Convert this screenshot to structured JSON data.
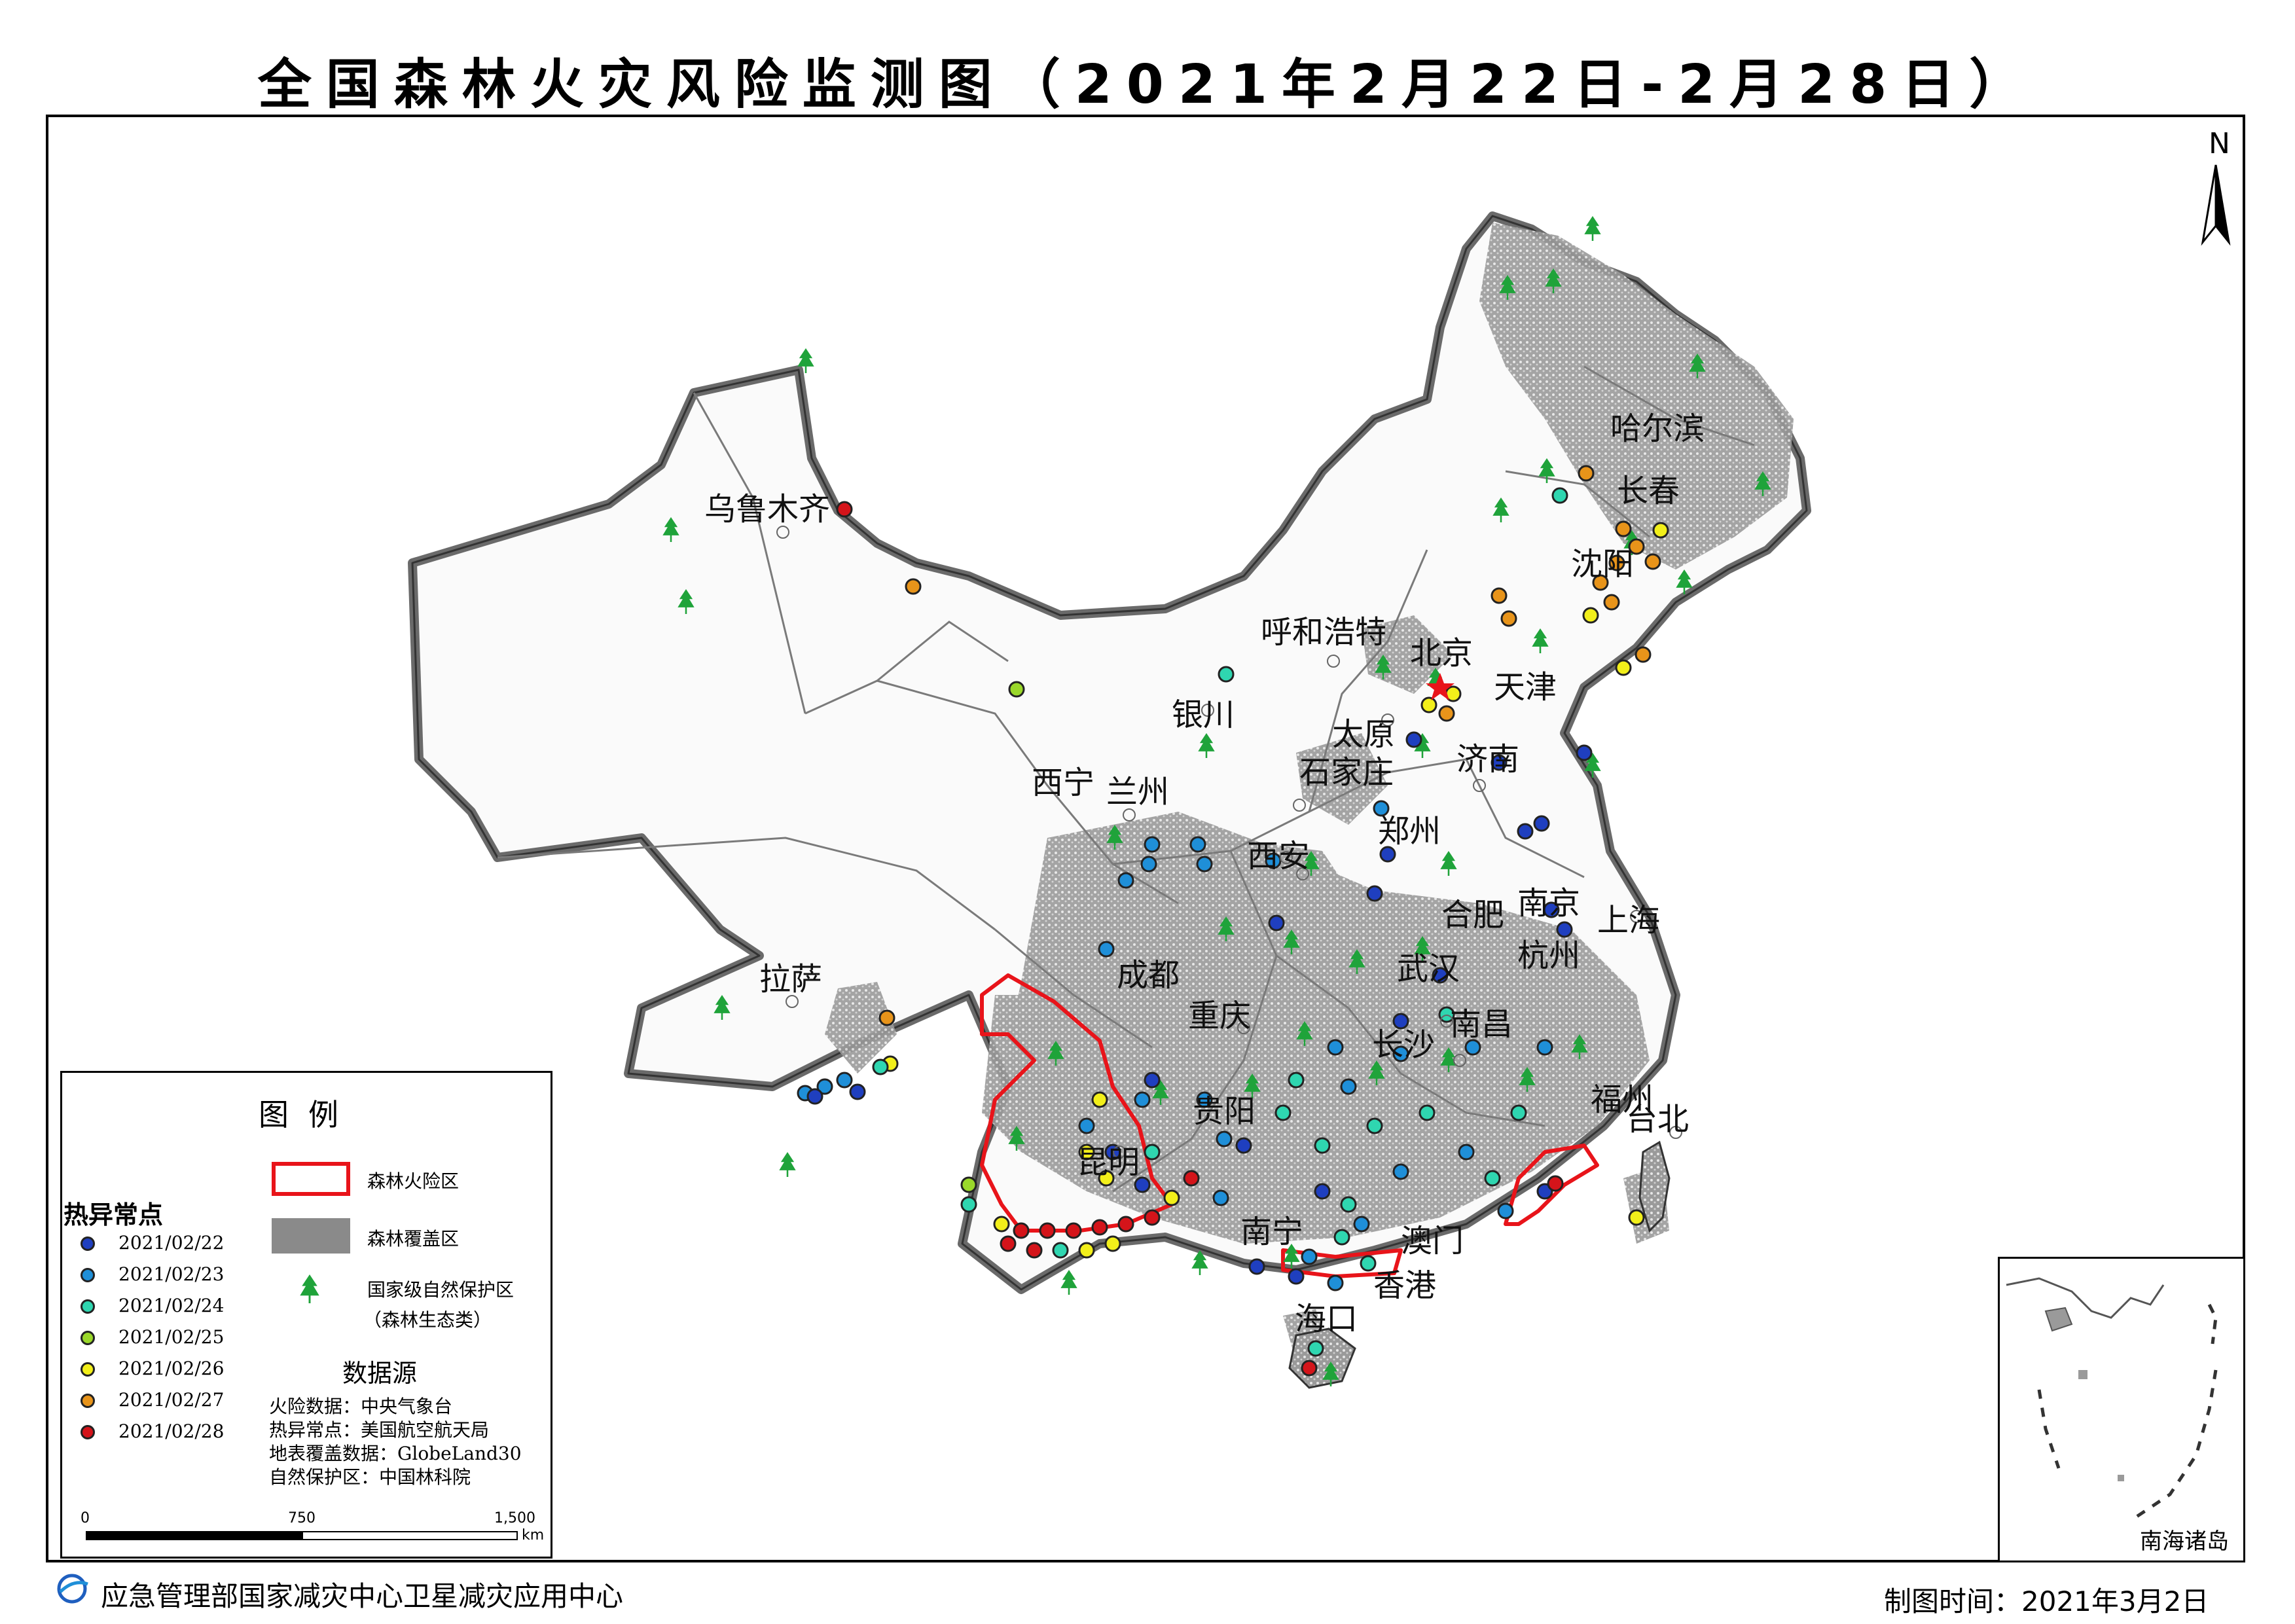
{
  "title": "全国森林火灾风险监测图（2021年2月22日-2月28日）",
  "north_label": "N",
  "cities": [
    {
      "name": "哈尔滨"
    },
    {
      "name": "长春"
    },
    {
      "name": "沈阳"
    },
    {
      "name": "乌鲁木齐"
    },
    {
      "name": "呼和浩特"
    },
    {
      "name": "北京"
    },
    {
      "name": "天津"
    },
    {
      "name": "银川"
    },
    {
      "name": "太原"
    },
    {
      "name": "石家庄"
    },
    {
      "name": "济南"
    },
    {
      "name": "西宁"
    },
    {
      "name": "兰州"
    },
    {
      "name": "郑州"
    },
    {
      "name": "西安"
    },
    {
      "name": "合肥"
    },
    {
      "name": "南京"
    },
    {
      "name": "上海"
    },
    {
      "name": "杭州"
    },
    {
      "name": "拉萨"
    },
    {
      "name": "成都"
    },
    {
      "name": "武汉"
    },
    {
      "name": "重庆"
    },
    {
      "name": "长沙"
    },
    {
      "name": "南昌"
    },
    {
      "name": "福州"
    },
    {
      "name": "台北"
    },
    {
      "name": "贵阳"
    },
    {
      "name": "昆明"
    },
    {
      "name": "南宁"
    },
    {
      "name": "澳门"
    },
    {
      "name": "香港"
    },
    {
      "name": "海口"
    }
  ],
  "legend": {
    "title": "图例",
    "hotspot_heading": "热异常点",
    "hotspot_dates": [
      {
        "date": "2021/02/22",
        "color": "#1f3fbf"
      },
      {
        "date": "2021/02/23",
        "color": "#1f8fd8"
      },
      {
        "date": "2021/02/24",
        "color": "#2fd6b0"
      },
      {
        "date": "2021/02/25",
        "color": "#9ad82a"
      },
      {
        "date": "2021/02/26",
        "color": "#f2ef1a"
      },
      {
        "date": "2021/02/27",
        "color": "#e8941a"
      },
      {
        "date": "2021/02/28",
        "color": "#d4141a"
      }
    ],
    "fire_risk_label": "森林火险区",
    "forest_cover_label": "森林覆盖区",
    "reserve_label": "国家级自然保护区",
    "reserve_sublabel": "（森林生态类）",
    "source_heading": "数据源",
    "sources": [
      "火险数据：中央气象台",
      "热异常点：美国航空航天局",
      "地表覆盖数据：GlobeLand30",
      "自然保护区：中国林科院"
    ],
    "scale": {
      "ticks": [
        "0",
        "750",
        "1,500"
      ],
      "unit": "km"
    }
  },
  "inset_label": "南海诸岛",
  "footer": {
    "agency": "应急管理部国家减灾中心卫星减灾应用中心",
    "date_label": "制图时间：2021年3月2日"
  },
  "colors": {
    "fire_risk": "#e8141a",
    "forest": "#8a8a8a",
    "reserve": "#1fa33a",
    "boundary": "#7a7a7a"
  }
}
